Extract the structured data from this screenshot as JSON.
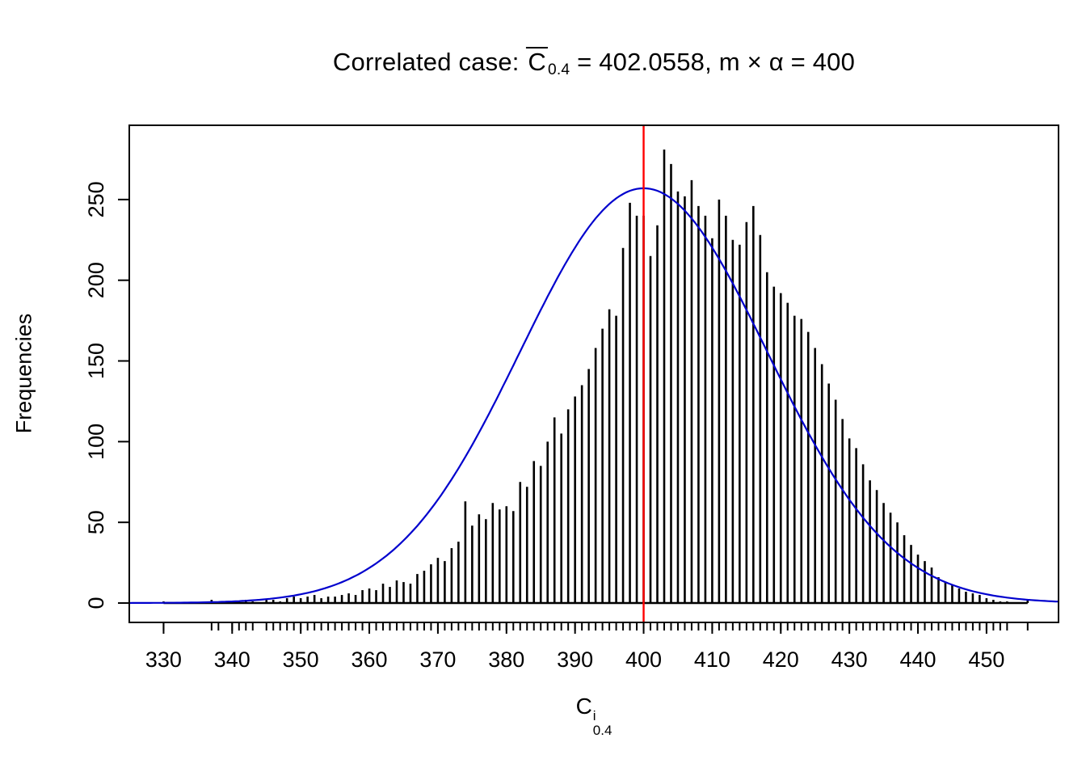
{
  "figure": {
    "title": {
      "prefix": "Correlated case: ",
      "cbar": "C",
      "csub": "0.4",
      "rest": " = 402.0558,  m × α = 400"
    },
    "xlabel": {
      "base": "C",
      "sup": "i",
      "sub": "0.4"
    },
    "ylabel": "Frequencies"
  },
  "chart_data": {
    "type": "bar",
    "title": "Correlated case: C̄_0.4 = 402.0558, m × α = 400",
    "xlabel": "C^i_0.4",
    "ylabel": "Frequencies",
    "legend": "none",
    "grid": false,
    "x_start": 330,
    "x_step": 1,
    "frequencies": [
      1,
      0,
      0,
      0,
      0,
      0,
      0,
      2,
      1,
      0,
      1,
      1,
      2,
      1,
      0,
      2,
      2,
      1,
      3,
      4,
      3,
      4,
      5,
      3,
      4,
      4,
      5,
      6,
      5,
      8,
      9,
      8,
      12,
      10,
      14,
      13,
      12,
      18,
      20,
      24,
      28,
      26,
      34,
      38,
      63,
      48,
      55,
      52,
      62,
      58,
      60,
      57,
      75,
      72,
      88,
      85,
      100,
      115,
      105,
      120,
      128,
      135,
      145,
      158,
      170,
      182,
      178,
      220,
      248,
      240,
      240,
      215,
      234,
      281,
      272,
      255,
      252,
      262,
      246,
      240,
      226,
      250,
      240,
      225,
      222,
      236,
      246,
      228,
      205,
      196,
      192,
      186,
      178,
      176,
      168,
      158,
      148,
      136,
      126,
      114,
      102,
      96,
      86,
      76,
      70,
      62,
      56,
      50,
      42,
      36,
      30,
      26,
      22,
      16,
      13,
      11,
      9,
      7,
      6,
      5,
      3,
      2,
      1,
      1,
      0,
      0,
      2
    ],
    "x_ticks": [
      330,
      340,
      350,
      360,
      370,
      380,
      390,
      400,
      410,
      420,
      430,
      440,
      450
    ],
    "y_ticks": [
      0,
      50,
      100,
      150,
      200,
      250
    ],
    "xlim": [
      325,
      460.5
    ],
    "ylim": [
      -12,
      296
    ],
    "bar_color": "#000000",
    "normal_curve": {
      "mean": 400,
      "sd": 18,
      "peak": 257,
      "color": "#0000CD"
    },
    "vline": {
      "x": 400,
      "color": "#FF0000"
    }
  }
}
